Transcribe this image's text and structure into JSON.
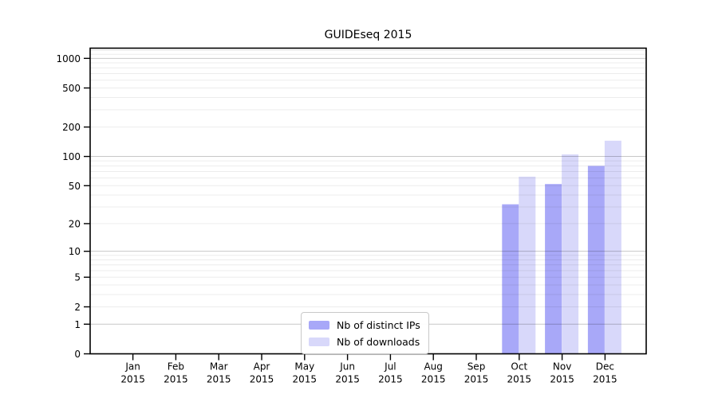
{
  "chart_data": {
    "type": "bar",
    "title": "GUIDEseq 2015",
    "categories": [
      "Jan 2015",
      "Feb 2015",
      "Mar 2015",
      "Apr 2015",
      "May 2015",
      "Jun 2015",
      "Jul 2015",
      "Aug 2015",
      "Sep 2015",
      "Oct 2015",
      "Nov 2015",
      "Dec 2015"
    ],
    "series": [
      {
        "name": "Nb of distinct IPs",
        "color": "#a8a8f8",
        "values": [
          0,
          0,
          0,
          0,
          0,
          0,
          0,
          0,
          0,
          32,
          52,
          80
        ]
      },
      {
        "name": "Nb of downloads",
        "color": "#d8d8fa",
        "values": [
          0,
          0,
          0,
          0,
          0,
          0,
          0,
          0,
          0,
          62,
          105,
          145
        ]
      }
    ],
    "xlabel": "",
    "ylabel": "",
    "yscale": "log1p",
    "yticks": [
      0,
      1,
      2,
      5,
      10,
      20,
      50,
      100,
      200,
      500,
      1000
    ],
    "ylim": [
      0,
      1270
    ],
    "grid": "horizontal major at 1,10,100,1000 with faint log minors",
    "legend_position": "lower center inside plot"
  }
}
